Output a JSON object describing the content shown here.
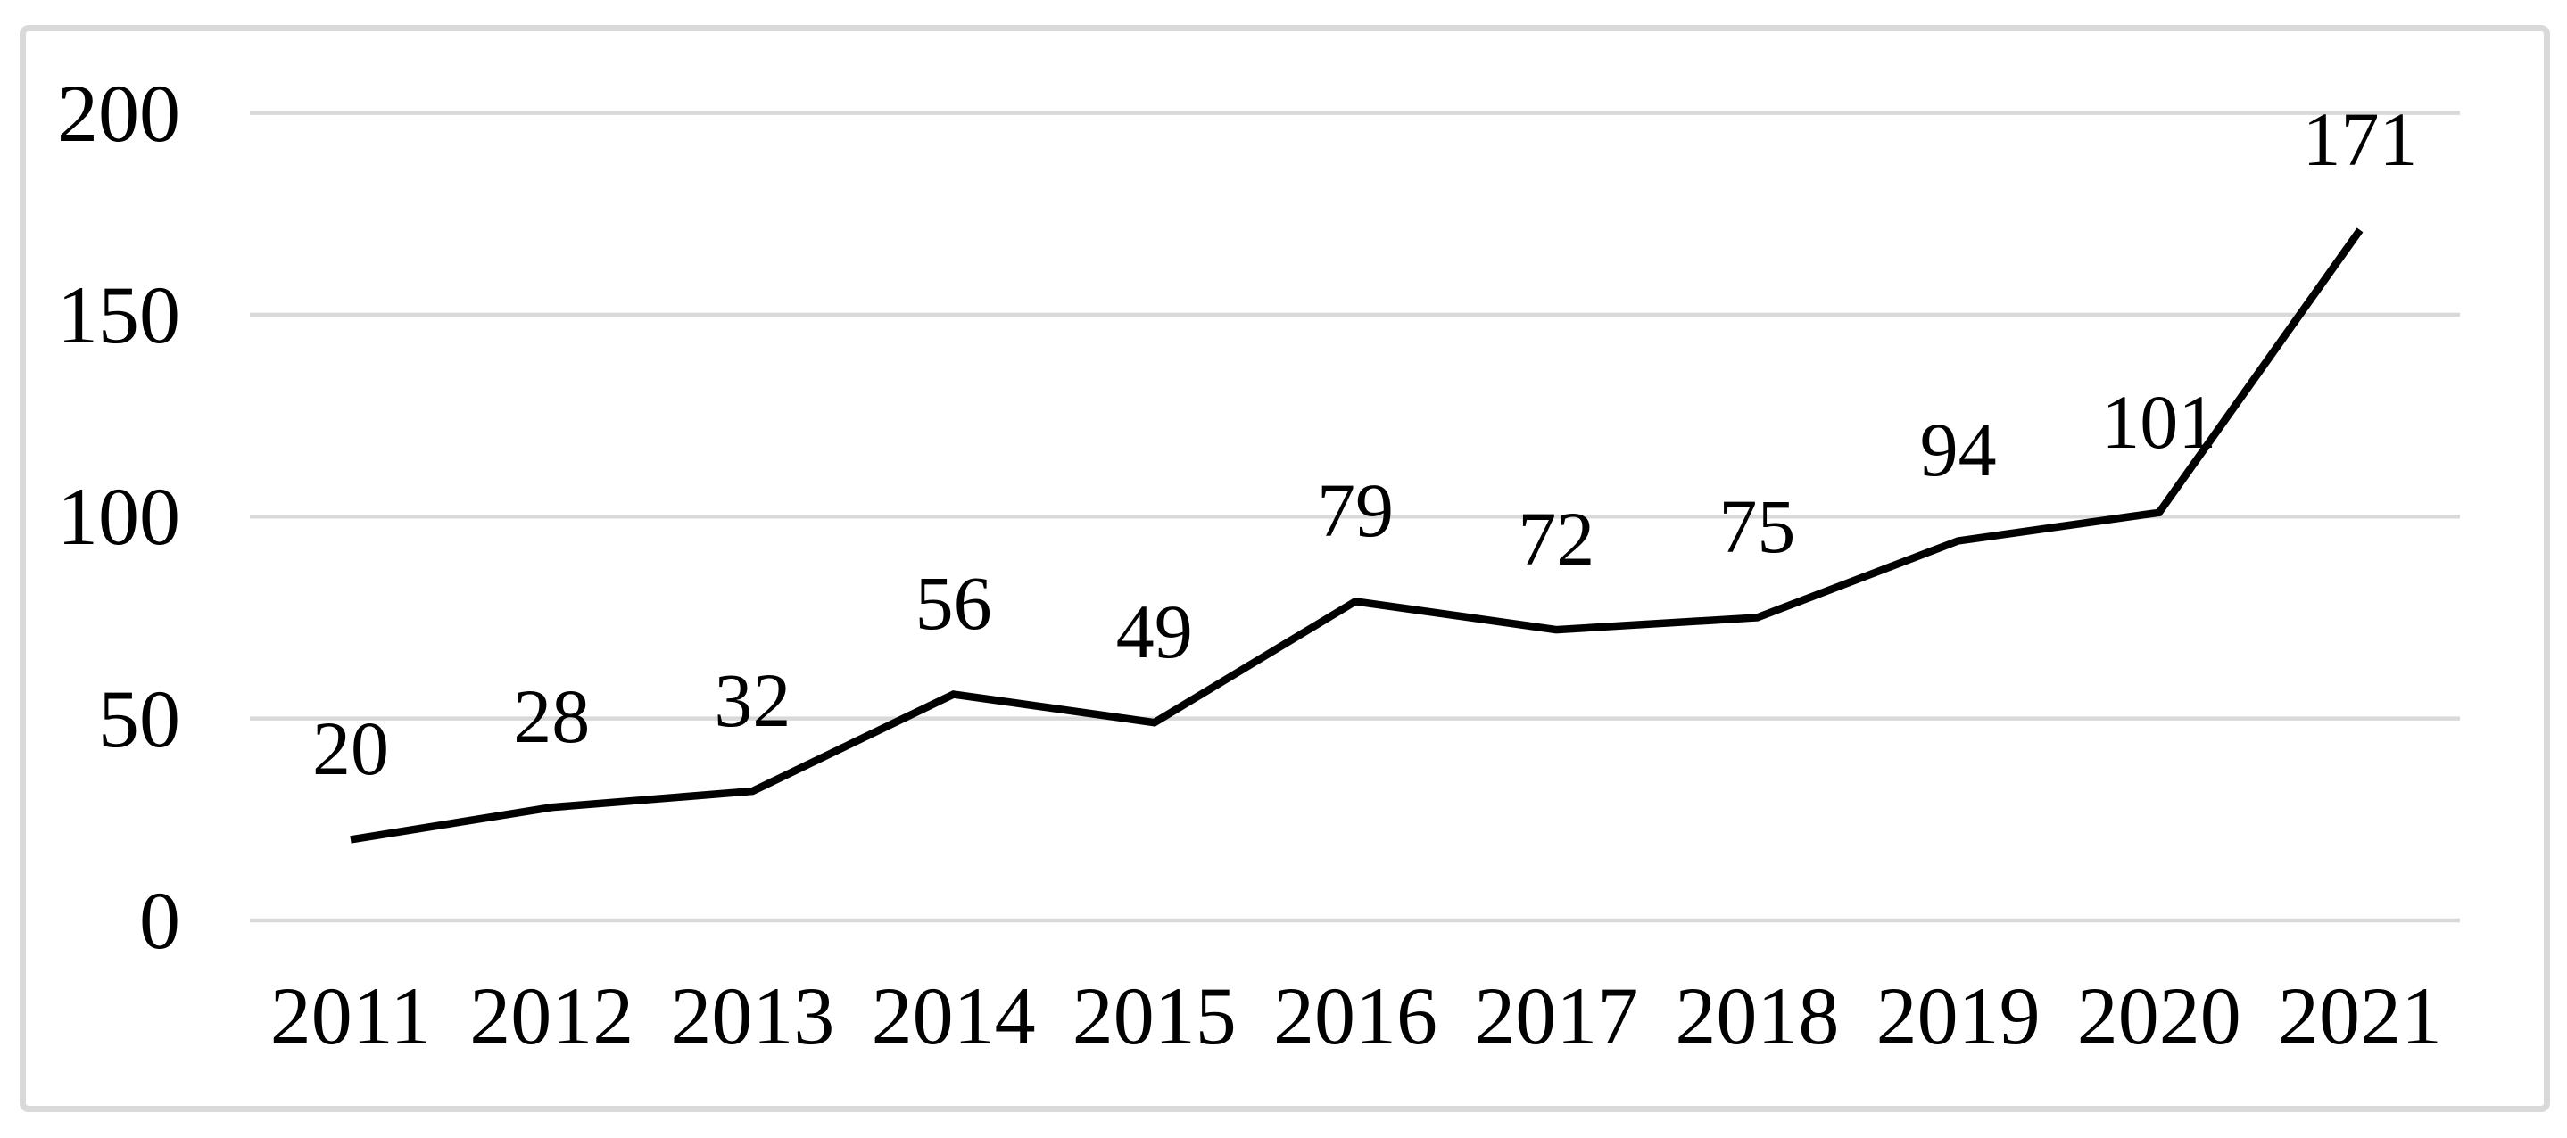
{
  "chart_data": {
    "type": "line",
    "title": "",
    "xlabel": "",
    "ylabel": "",
    "categories": [
      "2011",
      "2012",
      "2013",
      "2014",
      "2015",
      "2016",
      "2017",
      "2018",
      "2019",
      "2020",
      "2021"
    ],
    "values": [
      20,
      28,
      32,
      56,
      49,
      79,
      72,
      75,
      94,
      101,
      171
    ],
    "data_labels": [
      20,
      28,
      32,
      56,
      49,
      79,
      72,
      75,
      94,
      101,
      171
    ],
    "ylim": [
      0,
      200
    ],
    "yticks": [
      0,
      50,
      100,
      150,
      200
    ],
    "grid": true,
    "legend": false,
    "markers": false,
    "colors": {
      "series_line": "#000000",
      "gridline": "#d9d9d9",
      "chart_border": "#d9d9d9",
      "text": "#000000",
      "background": "#ffffff"
    }
  }
}
